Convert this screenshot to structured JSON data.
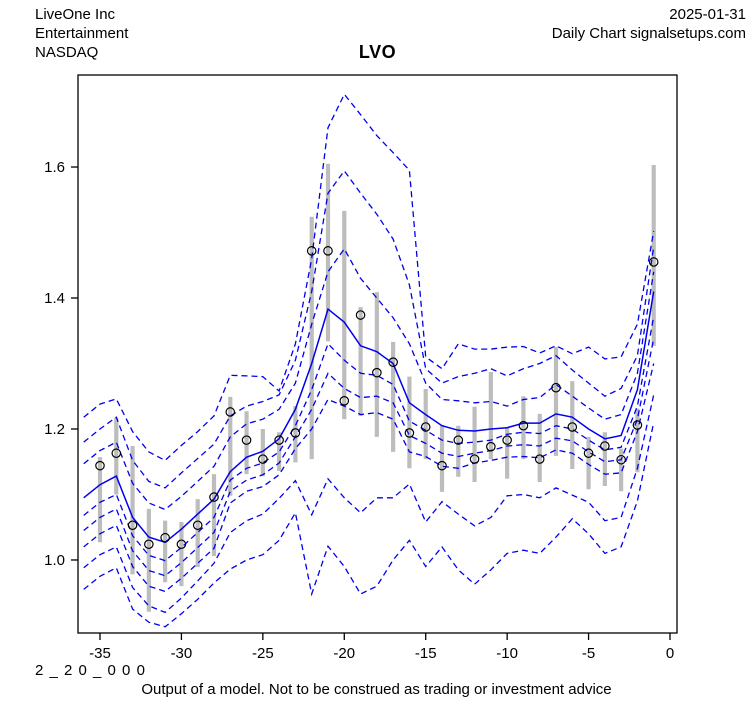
{
  "header": {
    "company": "LiveOne Inc",
    "sector": "Entertainment",
    "exchange": "NASDAQ",
    "date": "2025-01-31",
    "chart_label": "Daily Chart signalsetups.com"
  },
  "title": "LVO",
  "footer": {
    "model_code": "2 _ 2 0 _ 0 0 0",
    "disclaimer": "Output of a model. Not to be construed as trading or investment advice"
  },
  "chart_data": {
    "type": "line",
    "title": "LVO",
    "xlabel": "",
    "ylabel": "",
    "xlim": [
      -36.35,
      0.43
    ],
    "ylim": [
      0.8885,
      1.7405
    ],
    "x_ticks": [
      -35,
      -30,
      -25,
      -20,
      -15,
      -10,
      -5,
      0
    ],
    "y_ticks": [
      "1.0",
      "1.2",
      "1.4",
      "1.6"
    ],
    "grid": false,
    "legend": "none",
    "days": [
      -36,
      -35,
      -34,
      -33,
      -32,
      -31,
      -30,
      -29,
      -28,
      -27,
      -26,
      -25,
      -24,
      -23,
      -22,
      -21,
      -20,
      -19,
      -18,
      -17,
      -16,
      -15,
      -14,
      -13,
      -12,
      -11,
      -10,
      -9,
      -8,
      -7,
      -6,
      -5,
      -4,
      -3,
      -2,
      -1
    ],
    "quantile_bands": [
      {
        "name": "upper-3",
        "style": "dashed",
        "values": [
          1.218,
          1.238,
          1.246,
          1.196,
          1.165,
          1.152,
          1.175,
          1.196,
          1.22,
          1.282,
          1.281,
          1.28,
          1.258,
          1.33,
          1.46,
          1.66,
          1.711,
          1.68,
          1.648,
          1.622,
          1.595,
          1.31,
          1.292,
          1.33,
          1.322,
          1.322,
          1.325,
          1.326,
          1.316,
          1.327,
          1.315,
          1.325,
          1.307,
          1.31,
          1.36,
          1.502
        ]
      },
      {
        "name": "upper-2",
        "style": "dashed",
        "values": [
          1.18,
          1.2,
          1.218,
          1.152,
          1.12,
          1.11,
          1.133,
          1.155,
          1.177,
          1.22,
          1.235,
          1.242,
          1.252,
          1.305,
          1.41,
          1.56,
          1.594,
          1.56,
          1.528,
          1.49,
          1.42,
          1.292,
          1.27,
          1.28,
          1.285,
          1.292,
          1.281,
          1.292,
          1.3,
          1.312,
          1.29,
          1.27,
          1.25,
          1.262,
          1.312,
          1.478
        ]
      },
      {
        "name": "upper-1",
        "style": "dashed",
        "values": [
          1.147,
          1.167,
          1.18,
          1.117,
          1.087,
          1.077,
          1.097,
          1.12,
          1.143,
          1.188,
          1.208,
          1.215,
          1.23,
          1.27,
          1.36,
          1.44,
          1.475,
          1.43,
          1.4,
          1.37,
          1.33,
          1.27,
          1.245,
          1.243,
          1.24,
          1.242,
          1.235,
          1.245,
          1.248,
          1.268,
          1.25,
          1.232,
          1.215,
          1.222,
          1.285,
          1.44
        ]
      },
      {
        "name": "median",
        "style": "solid",
        "values": [
          1.095,
          1.115,
          1.128,
          1.065,
          1.035,
          1.027,
          1.047,
          1.07,
          1.093,
          1.135,
          1.157,
          1.166,
          1.185,
          1.23,
          1.3,
          1.383,
          1.363,
          1.327,
          1.318,
          1.3,
          1.24,
          1.222,
          1.205,
          1.198,
          1.197,
          1.2,
          1.202,
          1.209,
          1.209,
          1.223,
          1.218,
          1.2,
          1.185,
          1.19,
          1.26,
          1.41
        ]
      },
      {
        "name": "lower-1",
        "style": "dashed",
        "values": [
          1.068,
          1.088,
          1.1,
          1.037,
          1.007,
          0.999,
          1.019,
          1.042,
          1.065,
          1.122,
          1.14,
          1.148,
          1.165,
          1.205,
          1.26,
          1.33,
          1.305,
          1.285,
          1.282,
          1.268,
          1.212,
          1.198,
          1.183,
          1.178,
          1.18,
          1.183,
          1.192,
          1.195,
          1.193,
          1.205,
          1.2,
          1.183,
          1.168,
          1.172,
          1.235,
          1.372
        ]
      },
      {
        "name": "lower-2",
        "style": "dashed",
        "values": [
          1.045,
          1.065,
          1.078,
          1.014,
          0.984,
          0.976,
          0.996,
          1.019,
          1.042,
          1.105,
          1.122,
          1.13,
          1.148,
          1.188,
          1.23,
          1.285,
          1.262,
          1.248,
          1.25,
          1.24,
          1.19,
          1.178,
          1.163,
          1.158,
          1.163,
          1.167,
          1.174,
          1.176,
          1.174,
          1.186,
          1.182,
          1.165,
          1.15,
          1.153,
          1.215,
          1.338
        ]
      },
      {
        "name": "lower-3",
        "style": "dashed",
        "values": [
          1.02,
          1.04,
          1.053,
          0.99,
          0.96,
          0.952,
          0.972,
          0.995,
          1.018,
          1.087,
          1.105,
          1.112,
          1.13,
          1.17,
          1.2,
          1.245,
          1.235,
          1.222,
          1.225,
          1.215,
          1.165,
          1.158,
          1.143,
          1.14,
          1.148,
          1.152,
          1.157,
          1.158,
          1.156,
          1.168,
          1.163,
          1.146,
          1.131,
          1.133,
          1.196,
          1.3
        ]
      },
      {
        "name": "lower-4",
        "style": "dashed",
        "values": [
          0.988,
          1.008,
          1.02,
          0.958,
          0.93,
          0.92,
          0.942,
          0.968,
          0.995,
          1.042,
          1.06,
          1.07,
          1.094,
          1.121,
          1.069,
          1.124,
          1.095,
          1.072,
          1.095,
          1.095,
          1.116,
          1.058,
          1.089,
          1.07,
          1.052,
          1.065,
          1.098,
          1.1,
          1.095,
          1.11,
          1.099,
          1.088,
          1.06,
          1.065,
          1.14,
          1.252
        ]
      },
      {
        "name": "lower-5",
        "style": "dashed",
        "values": [
          0.955,
          0.975,
          0.988,
          0.925,
          0.905,
          0.898,
          0.918,
          0.94,
          0.965,
          0.986,
          1.0,
          1.008,
          1.03,
          1.072,
          0.948,
          1.021,
          0.99,
          0.948,
          0.96,
          1.0,
          1.03,
          0.99,
          1.02,
          0.985,
          0.963,
          0.985,
          1.01,
          1.015,
          1.01,
          1.035,
          1.063,
          1.04,
          1.01,
          1.02,
          1.09,
          1.21
        ]
      }
    ],
    "observations": {
      "days": [
        -35,
        -34,
        -33,
        -32,
        -31,
        -30,
        -29,
        -28,
        -27,
        -26,
        -25,
        -24,
        -23,
        -22,
        -21,
        -20,
        -19,
        -18,
        -17,
        -16,
        -15,
        -14,
        -13,
        -12,
        -11,
        -10,
        -9,
        -8,
        -7,
        -6,
        -5,
        -4,
        -3,
        -2,
        -1
      ],
      "close": [
        1.144,
        1.163,
        1.053,
        1.024,
        1.034,
        1.024,
        1.053,
        1.096,
        1.226,
        1.183,
        1.154,
        1.183,
        1.194,
        1.472,
        1.472,
        1.243,
        1.374,
        1.286,
        1.302,
        1.194,
        1.203,
        1.144,
        1.183,
        1.154,
        1.173,
        1.183,
        1.205,
        1.154,
        1.263,
        1.203,
        1.163,
        1.174,
        1.153,
        1.206,
        1.455
      ],
      "high": [
        1.157,
        1.217,
        1.174,
        1.078,
        1.06,
        1.058,
        1.093,
        1.131,
        1.249,
        1.227,
        1.2,
        1.195,
        1.235,
        1.524,
        1.605,
        1.533,
        1.386,
        1.409,
        1.333,
        1.28,
        1.261,
        1.206,
        1.205,
        1.234,
        1.287,
        1.203,
        1.25,
        1.223,
        1.325,
        1.273,
        1.188,
        1.195,
        1.17,
        1.231,
        1.603
      ],
      "low": [
        1.027,
        1.1,
        0.978,
        0.921,
        0.966,
        0.96,
        0.989,
        1.006,
        1.098,
        1.131,
        1.128,
        1.136,
        1.149,
        1.154,
        1.334,
        1.215,
        1.22,
        1.188,
        1.165,
        1.14,
        1.154,
        1.104,
        1.127,
        1.119,
        1.154,
        1.124,
        1.154,
        1.119,
        1.159,
        1.139,
        1.108,
        1.113,
        1.105,
        1.134,
        1.327
      ]
    },
    "colors": {
      "band_line": "#0000EE",
      "median_line": "#0000EE",
      "range_bar": "#BDBDBD",
      "close_marker": "#000000",
      "axis": "#000000",
      "background": "#FFFFFF"
    }
  }
}
